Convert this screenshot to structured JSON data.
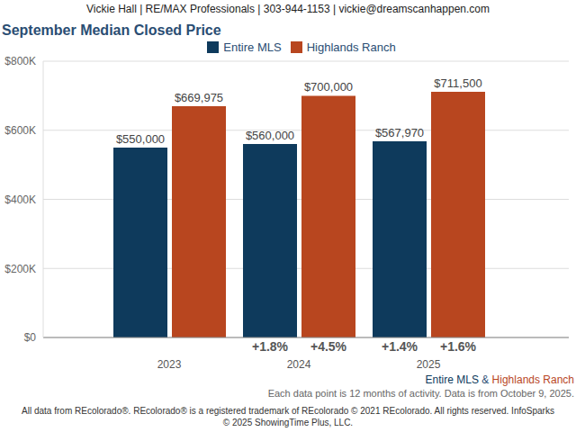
{
  "chart_data": {
    "type": "bar",
    "header": "Vickie Hall | RE/MAX Professionals | 303-944-1153 | vickie@dreamscanhappen.com",
    "title": "September Median Closed Price",
    "categories": [
      "2023",
      "2024",
      "2025"
    ],
    "series": [
      {
        "name": "Entire MLS",
        "color": "#0e3a5c",
        "values": [
          550000,
          560000,
          567970
        ],
        "value_labels": [
          "$550,000",
          "$560,000",
          "$567,970"
        ],
        "change_labels": [
          null,
          "+1.8%",
          "+1.4%"
        ]
      },
      {
        "name": "Highlands Ranch",
        "color": "#b8461f",
        "values": [
          669975,
          700000,
          711500
        ],
        "value_labels": [
          "$669,975",
          "$700,000",
          "$711,500"
        ],
        "change_labels": [
          null,
          "+4.5%",
          "+1.6%"
        ]
      }
    ],
    "ylim": [
      0,
      800000
    ],
    "yticks": [
      {
        "value": 0,
        "label": "$0"
      },
      {
        "value": 200000,
        "label": "$200K"
      },
      {
        "value": 400000,
        "label": "$400K"
      },
      {
        "value": 600000,
        "label": "$600K"
      },
      {
        "value": 800000,
        "label": "$800K"
      }
    ],
    "grid": true,
    "legend": "top",
    "data_labels": true,
    "footer_series_joiner": "&",
    "notes": [
      "Each data point is 12 months of activity. Data is from October 9, 2025.",
      "All data from REcolorado®. REcolorado® is a registered trademark of REcolorado © 2021 REcolorado. All rights reserved. InfoSparks © 2025 ShowingTime Plus, LLC."
    ]
  }
}
